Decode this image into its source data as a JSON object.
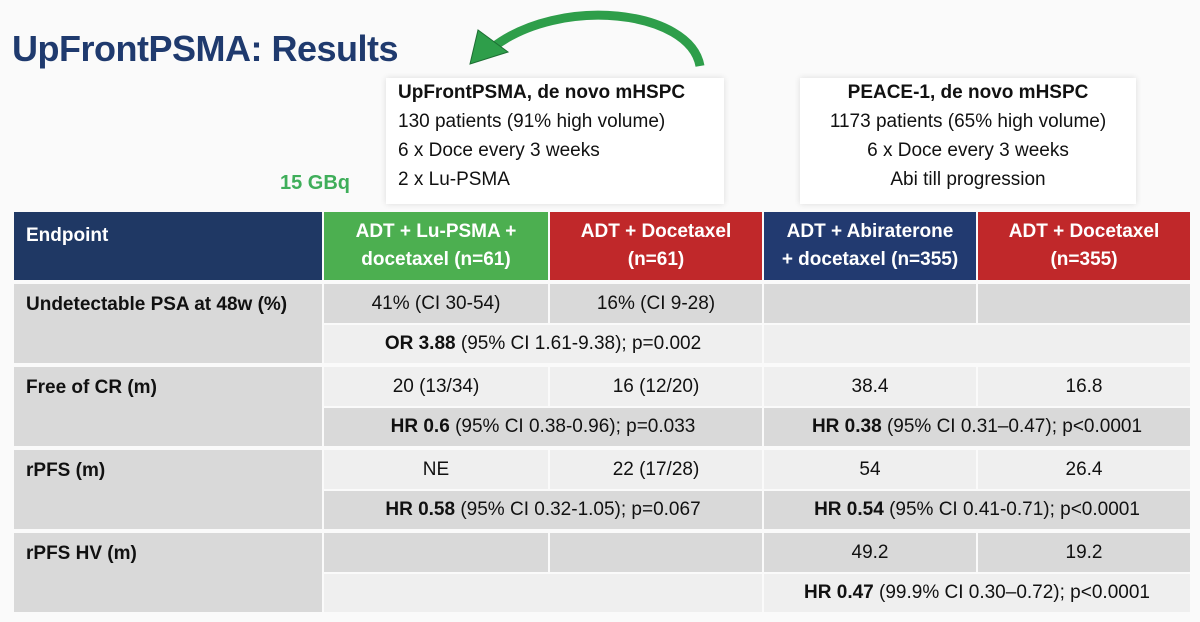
{
  "title": "UpFrontPSMA: Results",
  "dose": "15 GBq",
  "trials": [
    {
      "name": "UpFrontPSMA, de novo mHSPC",
      "lines": [
        "130 patients (91% high volume)",
        "6 x Doce every 3 weeks",
        "2 x Lu-PSMA"
      ]
    },
    {
      "name": "PEACE-1, de novo mHSPC",
      "lines": [
        "1173 patients (65% high volume)",
        "6 x Doce every 3 weeks",
        "Abi till progression"
      ]
    }
  ],
  "table": {
    "header": [
      [
        "Endpoint"
      ],
      [
        "ADT + Lu-PSMA +",
        "docetaxel (n=61)"
      ],
      [
        "ADT + Docetaxel",
        "(n=61)"
      ],
      [
        "ADT + Abiraterone",
        "+ docetaxel (n=355)"
      ],
      [
        "ADT + Docetaxel",
        "(n=355)"
      ]
    ],
    "header_colors": [
      "#1f3864",
      "#4caf50",
      "#c0282a",
      "#223a70",
      "#c0282a"
    ],
    "rows": [
      {
        "endpoint": "Undetectable PSA at 48w (%)",
        "upfront": [
          "41% (CI 30-54)",
          "16% (CI 9-28)"
        ],
        "upfront_stat": {
          "bold": "OR 3.88",
          "text": "(95% CI 1.61-9.38); p=0.002"
        }
      },
      {
        "endpoint": "Free of CR (m)",
        "upfront": [
          "20 (13/34)",
          "16 (12/20)"
        ],
        "upfront_stat": {
          "bold": "HR 0.6",
          "text": "(95% CI 0.38-0.96); p=0.033"
        },
        "peace": [
          "38.4",
          "16.8"
        ],
        "peace_stat": {
          "bold": "HR 0.38",
          "text": "(95% CI 0.31–0.47); p<0.0001"
        }
      },
      {
        "endpoint": "rPFS (m)",
        "upfront": [
          "NE",
          "22 (17/28)"
        ],
        "upfront_stat": {
          "bold": "HR 0.58",
          "text": "(95% CI 0.32-1.05); p=0.067"
        },
        "peace": [
          "54",
          "26.4"
        ],
        "peace_stat": {
          "bold": "HR 0.54",
          "text": "(95% CI 0.41-0.71); p<0.0001"
        }
      },
      {
        "endpoint": "rPFS  HV (m)",
        "peace": [
          "49.2",
          "19.2"
        ],
        "peace_stat": {
          "bold": "HR 0.47",
          "text": "(99.9% CI 0.30–0.72); p<0.0001"
        }
      }
    ]
  }
}
